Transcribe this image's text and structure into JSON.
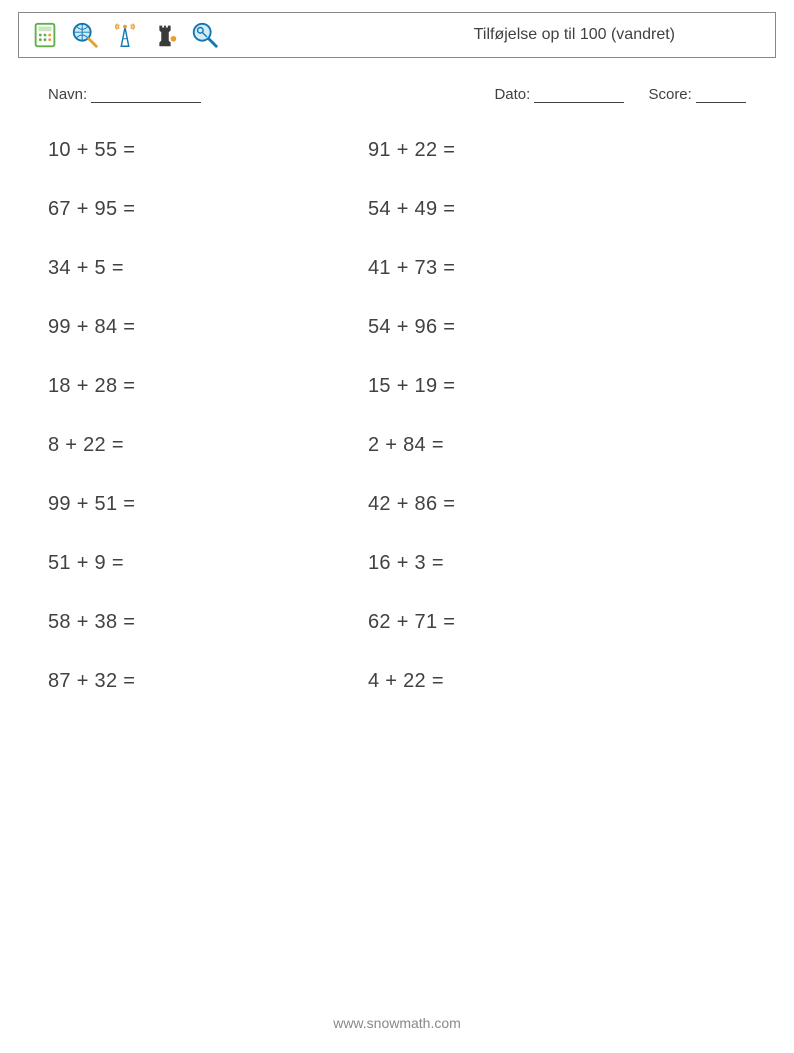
{
  "header": {
    "title": "Tilføjelse op til 100 (vandret)",
    "icons": [
      {
        "name": "calculator-icon"
      },
      {
        "name": "magnifier-globe-icon"
      },
      {
        "name": "antenna-icon"
      },
      {
        "name": "chess-rook-icon"
      },
      {
        "name": "magnifier-key-icon"
      }
    ]
  },
  "meta": {
    "name_label": "Navn:",
    "name_blank_width": 110,
    "date_label": "Dato:",
    "date_blank_width": 90,
    "score_label": "Score:",
    "score_blank_width": 50
  },
  "worksheet": {
    "columns": [
      [
        "10 + 55 =",
        "67 + 95 =",
        "34 + 5 =",
        "99 + 84 =",
        "18 + 28 =",
        "8 + 22 =",
        "99 + 51 =",
        "51 + 9 =",
        "58 + 38 =",
        "87 + 32 ="
      ],
      [
        "91 + 22 =",
        "54 + 49 =",
        "41 + 73 =",
        "54 + 96 =",
        "15 + 19 =",
        "2 + 84 =",
        "42 + 86 =",
        "16 + 3 =",
        "62 + 71 =",
        "4 + 22 ="
      ]
    ],
    "font_size": 20,
    "row_gap": 36,
    "text_color": "#414141"
  },
  "footer": {
    "url": "www.snowmath.com"
  },
  "colors": {
    "page_bg": "#ffffff",
    "border": "#888888",
    "text": "#414141",
    "footer": "#888888",
    "icon_blue": "#0f77b4",
    "icon_orange": "#e89d2f",
    "icon_teal": "#4db0b8",
    "icon_dark": "#3a3a3a",
    "icon_green": "#5fb04b"
  }
}
